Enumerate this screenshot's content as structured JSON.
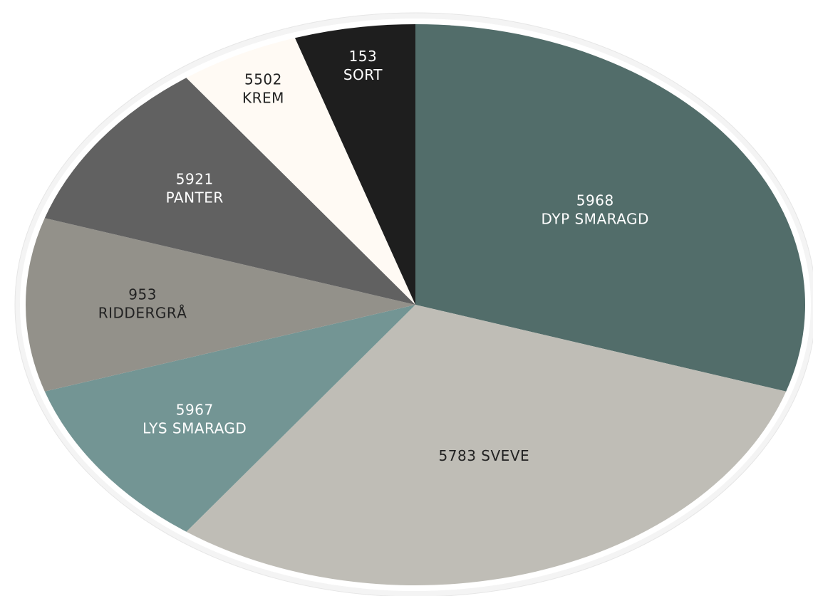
{
  "chart_data": {
    "type": "pie",
    "categories": [
      [
        "5968",
        "DYP SMARAGD"
      ],
      [
        "5783 SVEVE"
      ],
      [
        "5967",
        "LYS SMARAGD"
      ],
      [
        "953",
        "RIDDERGRÅ"
      ],
      [
        "5921",
        "PANTER"
      ],
      [
        "5502",
        "KREM"
      ],
      [
        "153",
        "SORT"
      ]
    ],
    "values": [
      30,
      30,
      10,
      10,
      10,
      5,
      5
    ],
    "colors": [
      "#526d6a",
      "#bfbdb6",
      "#739594",
      "#93918a",
      "#616161",
      "#fffaf4",
      "#1e1e1e"
    ]
  }
}
